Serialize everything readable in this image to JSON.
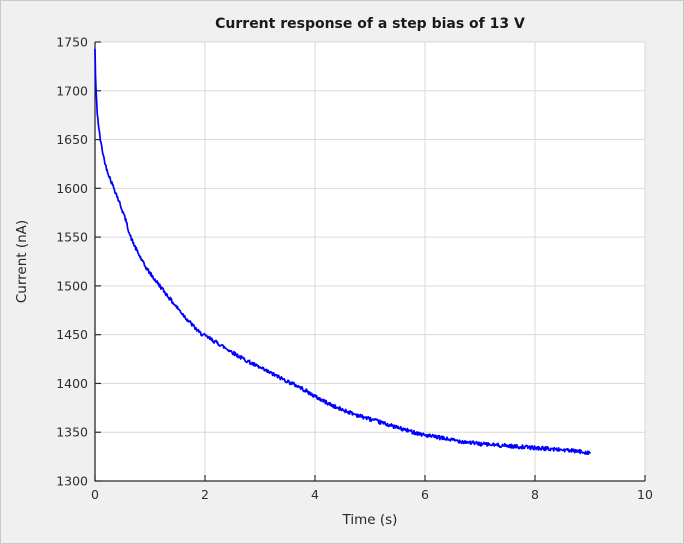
{
  "figure": {
    "background_color": "#f0f0f0",
    "plot_background_color": "#ffffff",
    "grid_color": "#d9d9d9",
    "spine_color": "#2b2b2b",
    "tick_color": "#2b2b2b",
    "text_color": "#262626",
    "border_color": "#c9c9c9"
  },
  "chart_data": {
    "type": "line",
    "title": "Current response of a step bias of 13 V",
    "xlabel": "Time (s)",
    "ylabel": "Current (nA)",
    "xlim": [
      0,
      10
    ],
    "ylim": [
      1300,
      1750
    ],
    "xticks": [
      0,
      2,
      4,
      6,
      8,
      10
    ],
    "yticks": [
      1300,
      1350,
      1400,
      1450,
      1500,
      1550,
      1600,
      1650,
      1700,
      1750
    ],
    "grid": true,
    "tick_direction": "in",
    "legend": "none",
    "series": [
      {
        "name": "current-response",
        "color": "#0000ff",
        "line_width": 1.7,
        "noise_nA": 2.0,
        "noise_seed": 42,
        "points": [
          [
            0.0,
            1742
          ],
          [
            0.015,
            1703
          ],
          [
            0.04,
            1678
          ],
          [
            0.07,
            1661
          ],
          [
            0.1,
            1649
          ],
          [
            0.15,
            1634
          ],
          [
            0.2,
            1622
          ],
          [
            0.28,
            1609
          ],
          [
            0.36,
            1598
          ],
          [
            0.46,
            1583
          ],
          [
            0.55,
            1569
          ],
          [
            0.64,
            1551
          ],
          [
            0.76,
            1536
          ],
          [
            0.9,
            1521
          ],
          [
            1.05,
            1509
          ],
          [
            1.18,
            1500
          ],
          [
            1.4,
            1484
          ],
          [
            1.67,
            1466
          ],
          [
            1.9,
            1452
          ],
          [
            2.27,
            1440
          ],
          [
            2.64,
            1427
          ],
          [
            3.0,
            1416
          ],
          [
            3.36,
            1406
          ],
          [
            3.73,
            1396
          ],
          [
            4.02,
            1386
          ],
          [
            4.4,
            1375
          ],
          [
            4.8,
            1367
          ],
          [
            5.2,
            1360
          ],
          [
            5.6,
            1353
          ],
          [
            6.0,
            1347
          ],
          [
            6.5,
            1342
          ],
          [
            7.0,
            1338
          ],
          [
            7.5,
            1336
          ],
          [
            8.0,
            1334
          ],
          [
            8.5,
            1332
          ],
          [
            9.0,
            1329
          ]
        ]
      }
    ]
  }
}
